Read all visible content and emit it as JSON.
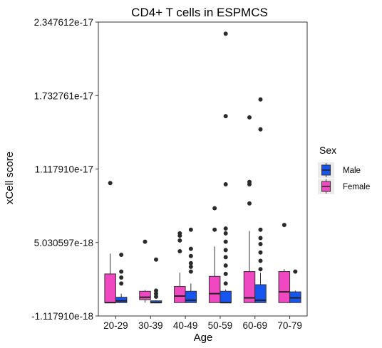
{
  "chart_data": {
    "type": "boxplot",
    "title": "CD4+ T cells in ESPMCS",
    "xlabel": "Age",
    "ylabel": "xCell score",
    "ylim": [
      -1.11791e-18,
      2.347612e-17
    ],
    "y_ticks": [
      {
        "value": -1.11791e-18,
        "label": "-1.117910e-18"
      },
      {
        "value": 5.030597e-18,
        "label": "5.030597e-18"
      },
      {
        "value": 1.11791e-17,
        "label": "1.117910e-17"
      },
      {
        "value": 1.732761e-17,
        "label": "1.732761e-17"
      },
      {
        "value": 2.347612e-17,
        "label": "2.347612e-17"
      }
    ],
    "categories": [
      "20-29",
      "30-39",
      "40-49",
      "50-59",
      "60-69",
      "70-79"
    ],
    "grid": false,
    "legend": {
      "title": "Sex",
      "position": "right",
      "entries": [
        {
          "label": "Male",
          "color": "#1655f0"
        },
        {
          "label": "Female",
          "color": "#f048c0"
        }
      ]
    },
    "series": [
      {
        "name": "Female",
        "color": "#f048c0",
        "boxes": [
          {
            "lower": 0,
            "q1": 0,
            "median": 0,
            "q3": 2.4e-18,
            "upper": 4.1e-18,
            "outliers": [
              1e-17
            ]
          },
          {
            "lower": 0,
            "q1": 2.5e-19,
            "median": 4.5e-19,
            "q3": 9.5e-19,
            "upper": 1.05e-18,
            "outliers": [
              5.1e-18
            ]
          },
          {
            "lower": 0,
            "q1": 0,
            "median": 5.5e-19,
            "q3": 1.35e-18,
            "upper": 2.5e-18,
            "outliers": [
              4.3e-18,
              5.2e-18,
              5.6e-18,
              5.8e-18
            ]
          },
          {
            "lower": 0,
            "q1": 0,
            "median": 7.5e-19,
            "q3": 2.2e-18,
            "upper": 4.7e-18,
            "outliers": [
              6.1e-18,
              7.9e-18
            ]
          },
          {
            "lower": 0,
            "q1": 0,
            "median": 4e-19,
            "q3": 2.6e-18,
            "upper": 6e-18,
            "outliers": [
              8.3e-18,
              9.9e-18,
              1.01e-17,
              1.55e-17
            ]
          },
          {
            "lower": 0,
            "q1": 0,
            "median": 9e-19,
            "q3": 2.6e-18,
            "upper": 2.8e-18,
            "outliers": [
              6.5e-18
            ]
          }
        ]
      },
      {
        "name": "Male",
        "color": "#1655f0",
        "boxes": [
          {
            "lower": 0,
            "q1": 0,
            "median": 1.5e-19,
            "q3": 4.5e-19,
            "upper": 7.5e-19,
            "outliers": [
              1.6e-18,
              2.1e-18,
              2.6e-18,
              4e-18
            ]
          },
          {
            "lower": 0,
            "q1": 0,
            "median": 0,
            "q3": 1.5e-19,
            "upper": 2e-19,
            "outliers": [
              5e-19,
              7.5e-19,
              1e-18,
              3.6e-18
            ]
          },
          {
            "lower": 0,
            "q1": 0,
            "median": 2e-19,
            "q3": 9.5e-19,
            "upper": 1.6e-18,
            "outliers": [
              2.6e-18,
              3e-18,
              3.3e-18,
              3.9e-18,
              4.5e-18,
              6.1e-18
            ]
          },
          {
            "lower": 0,
            "q1": 0,
            "median": 0,
            "q3": 9.5e-19,
            "upper": 1.1e-18,
            "outliers": [
              1.6e-18,
              2.4e-18,
              3.1e-18,
              3.8e-18,
              4.4e-18,
              5.1e-18,
              5.8e-18,
              6.2e-18,
              9.9e-18,
              1.56e-17,
              2.25e-17
            ]
          },
          {
            "lower": 0,
            "q1": 0,
            "median": 2e-19,
            "q3": 1.5e-18,
            "upper": 2.5e-18,
            "outliers": [
              2.8e-18,
              3.5e-18,
              4.2e-18,
              4.9e-18,
              5.4e-18,
              6.1e-18,
              1.45e-17,
              1.7e-17
            ]
          },
          {
            "lower": 0,
            "q1": 0,
            "median": 4e-19,
            "q3": 9e-19,
            "upper": 1e-18,
            "outliers": [
              2.6e-18
            ]
          }
        ]
      }
    ]
  }
}
